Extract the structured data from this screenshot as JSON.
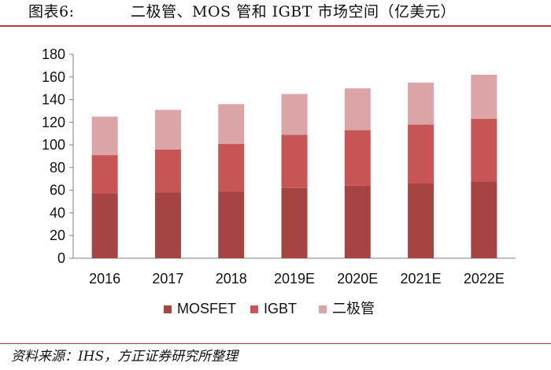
{
  "header": {
    "figure_label": "图表6:",
    "title": "二极管、MOS 管和 IGBT 市场空间（亿美元）"
  },
  "footer": {
    "source": "资料来源：IHS，方正证券研究所整理"
  },
  "colors": {
    "rule": "#b53a3a",
    "axis": "#808080"
  },
  "chart_data": {
    "type": "bar",
    "stacked": true,
    "categories": [
      "2016",
      "2017",
      "2018",
      "2019E",
      "2020E",
      "2021E",
      "2022E"
    ],
    "series": [
      {
        "name": "MOSFET",
        "color": "#a64444",
        "values": [
          57,
          58,
          59,
          62,
          64,
          66,
          68
        ]
      },
      {
        "name": "IGBT",
        "color": "#c85555",
        "values": [
          34,
          38,
          42,
          47,
          49,
          52,
          55
        ]
      },
      {
        "name": "二极管",
        "color": "#dba5a7",
        "values": [
          34,
          35,
          35,
          36,
          37,
          37,
          39
        ]
      }
    ],
    "ylim": [
      0,
      180
    ],
    "yticks": [
      0,
      20,
      40,
      60,
      80,
      100,
      120,
      140,
      160,
      180
    ],
    "grid": false,
    "legend": "bottom"
  }
}
